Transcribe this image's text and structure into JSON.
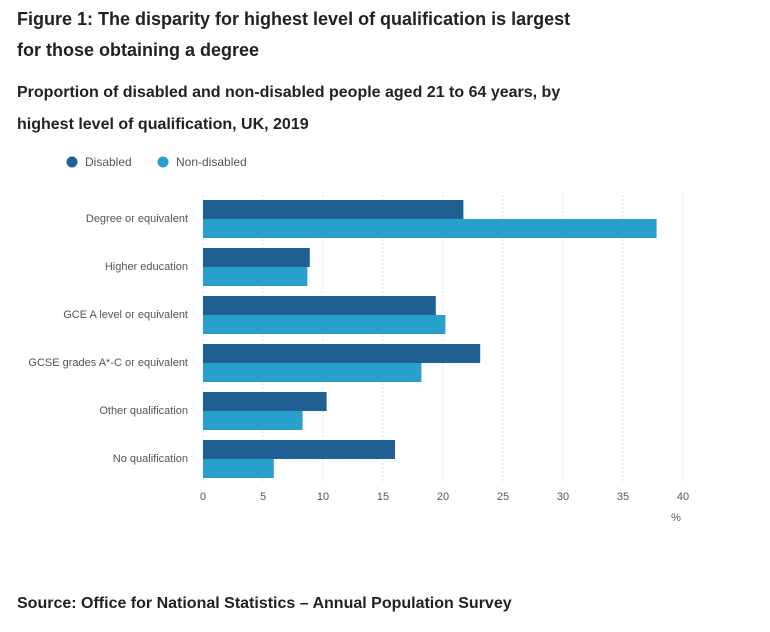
{
  "chart_data": {
    "type": "bar",
    "orientation": "horizontal",
    "title": [
      "Figure 1: The disparity for highest level of qualification is largest",
      "for those obtaining a degree"
    ],
    "subtitle": [
      "Proportion of disabled and non-disabled people aged 21 to 64 years, by",
      "highest level of qualification, UK, 2019"
    ],
    "categories": [
      "Degree or equivalent",
      "Higher education",
      "GCE A level or equivalent",
      "GCSE grades A*-C or equivalent",
      "Other qualification",
      "No qualification"
    ],
    "series": [
      {
        "name": "Disabled",
        "color": "#206095",
        "values": [
          21.7,
          8.9,
          19.4,
          23.1,
          10.3,
          16.0
        ]
      },
      {
        "name": "Non-disabled",
        "color": "#27a0cc",
        "values": [
          37.8,
          8.7,
          20.2,
          18.2,
          8.3,
          5.9
        ]
      }
    ],
    "xlim": [
      0,
      40
    ],
    "xticks": [
      0,
      5,
      10,
      15,
      20,
      25,
      30,
      35,
      40
    ],
    "x_label": "%",
    "grid": true,
    "source": "Source: Office for National Statistics – Annual Population Survey"
  }
}
